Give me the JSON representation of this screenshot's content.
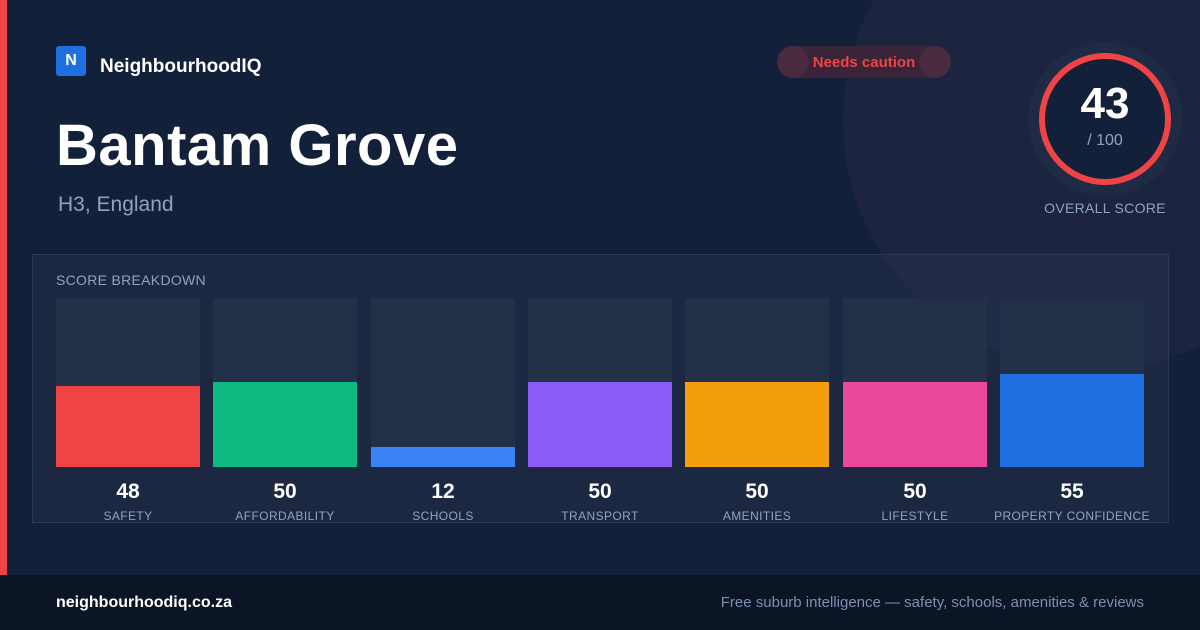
{
  "brand": {
    "logo_letter": "N",
    "name": "NeighbourhoodIQ"
  },
  "status_badge": {
    "label": "Needs caution",
    "color": "#ef4444"
  },
  "suburb": {
    "name": "Bantam Grove",
    "location": "H3, England"
  },
  "overall": {
    "score": "43",
    "max": "/ 100",
    "caption": "OVERALL SCORE",
    "fraction": 0.43,
    "ring_color": "#ef4444"
  },
  "breakdown": {
    "title": "SCORE BREAKDOWN",
    "items": [
      {
        "label": "SAFETY",
        "value": "48",
        "score": 48,
        "color": "#ef4444"
      },
      {
        "label": "AFFORDABILITY",
        "value": "50",
        "score": 50,
        "color": "#10b981"
      },
      {
        "label": "SCHOOLS",
        "value": "12",
        "score": 12,
        "color": "#3b82f6"
      },
      {
        "label": "TRANSPORT",
        "value": "50",
        "score": 50,
        "color": "#8b5cf6"
      },
      {
        "label": "AMENITIES",
        "value": "50",
        "score": 50,
        "color": "#f59e0b"
      },
      {
        "label": "LIFESTYLE",
        "value": "50",
        "score": 50,
        "color": "#ec4899"
      },
      {
        "label": "PROPERTY CONFIDENCE",
        "value": "55",
        "score": 55,
        "color": "#1f6fe0"
      }
    ]
  },
  "footer": {
    "domain": "neighbourhoodiq.co.za",
    "tagline": "Free suburb intelligence — safety, schools, amenities & reviews"
  }
}
